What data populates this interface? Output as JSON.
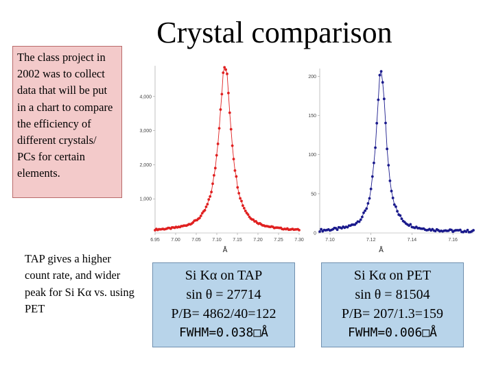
{
  "title": "Crystal comparison",
  "note": "The class project in 2002 was to collect data that will be put in a chart to compare the efficiency of different crystals/ PCs for certain elements.",
  "comparison": "TAP gives a higher count rate, and wider peak for Si Kα vs. using PET",
  "info_boxes": [
    {
      "line1": "Si Kα on TAP",
      "line2": "sin θ = 27714",
      "line3": "P/B= 4862/40=122",
      "line4": "FWHM=0.038□Å"
    },
    {
      "line1": "Si Kα on PET",
      "line2": "sin θ = 81504",
      "line3": "P/B= 207/1.3=159",
      "line4": "FWHM=0.006□Å"
    }
  ],
  "axis_unit": "Å",
  "colors": {
    "tap_series": "#e02020",
    "pet_series": "#1a1a8c",
    "note_bg": "#f3caca",
    "info_bg": "#b8d4ea"
  },
  "chart_data": [
    {
      "type": "scatter",
      "series": [
        {
          "values": "TAP scan (red points)"
        }
      ],
      "x_ticks": [
        "6.95",
        "7.00",
        "7.05",
        "7.10",
        "7.15",
        "7.20",
        "7.25",
        "7.30"
      ],
      "y_ticks": [
        "1,000",
        "2,000",
        "3,000",
        "4,000"
      ],
      "xlim": [
        6.95,
        7.3
      ],
      "ylim": [
        0,
        4900
      ],
      "peak": {
        "x": 7.12,
        "y": 4862
      },
      "background": 40,
      "fwhm": 0.038
    },
    {
      "type": "scatter",
      "series": [
        {
          "values": "PET scan (blue points)"
        }
      ],
      "x_ticks": [
        "7.10",
        "7.12",
        "7.14",
        "7.16"
      ],
      "y_ticks": [
        "0",
        "50",
        "100",
        "150",
        "200"
      ],
      "xlim": [
        7.095,
        7.17
      ],
      "ylim": [
        0,
        210
      ],
      "peak": {
        "x": 7.125,
        "y": 207
      },
      "background": 1.3,
      "fwhm": 0.006
    }
  ]
}
